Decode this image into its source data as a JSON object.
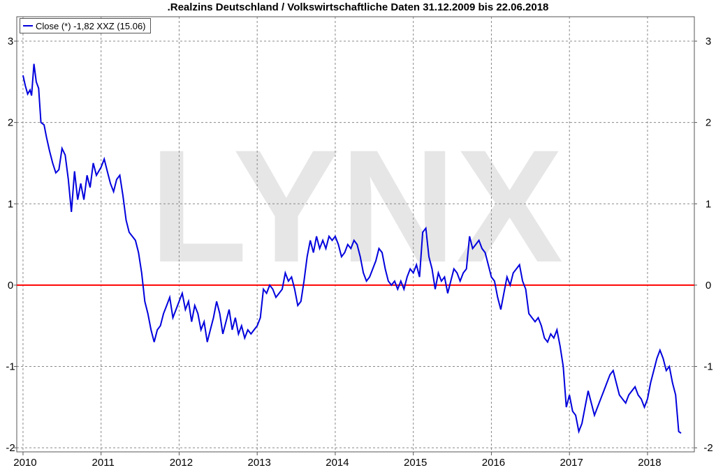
{
  "chart_data": {
    "type": "line",
    "title": ".Realzins Deutschland / Volkswirtschaftliche Daten 31.12.2009 bis 22.06.2018",
    "xlabel": "",
    "ylabel": "",
    "xlim": [
      2009.92,
      2018.6
    ],
    "ylim": [
      -2.05,
      3.3
    ],
    "xticks": [
      2010,
      2011,
      2012,
      2013,
      2014,
      2015,
      2016,
      2017,
      2018
    ],
    "xtick_labels": [
      "2010",
      "2011",
      "2012",
      "2013",
      "2014",
      "2015",
      "2016",
      "2017",
      "2018"
    ],
    "yticks": [
      -2,
      -1,
      0,
      1,
      2,
      3
    ],
    "ytick_labels": [
      "-2",
      "-1",
      "0",
      "1",
      "2",
      "3"
    ],
    "grid": true,
    "legend": {
      "position": "top-left",
      "label": "Close (*) -1,82 XXZ (15.06)"
    },
    "watermark": "LYNX",
    "reference_line": {
      "y": 0,
      "color": "#ff0000"
    },
    "series": [
      {
        "color": "#0000dd",
        "points": [
          [
            2010.0,
            2.58
          ],
          [
            2010.03,
            2.45
          ],
          [
            2010.06,
            2.35
          ],
          [
            2010.09,
            2.4
          ],
          [
            2010.11,
            2.33
          ],
          [
            2010.14,
            2.72
          ],
          [
            2010.17,
            2.5
          ],
          [
            2010.2,
            2.42
          ],
          [
            2010.23,
            2.0
          ],
          [
            2010.27,
            1.97
          ],
          [
            2010.3,
            1.82
          ],
          [
            2010.34,
            1.65
          ],
          [
            2010.38,
            1.5
          ],
          [
            2010.42,
            1.38
          ],
          [
            2010.46,
            1.42
          ],
          [
            2010.5,
            1.68
          ],
          [
            2010.54,
            1.6
          ],
          [
            2010.58,
            1.3
          ],
          [
            2010.62,
            0.9
          ],
          [
            2010.66,
            1.4
          ],
          [
            2010.7,
            1.05
          ],
          [
            2010.74,
            1.25
          ],
          [
            2010.78,
            1.05
          ],
          [
            2010.82,
            1.35
          ],
          [
            2010.86,
            1.2
          ],
          [
            2010.9,
            1.5
          ],
          [
            2010.94,
            1.35
          ],
          [
            2011.0,
            1.45
          ],
          [
            2011.04,
            1.55
          ],
          [
            2011.08,
            1.4
          ],
          [
            2011.12,
            1.25
          ],
          [
            2011.16,
            1.15
          ],
          [
            2011.2,
            1.3
          ],
          [
            2011.24,
            1.35
          ],
          [
            2011.28,
            1.1
          ],
          [
            2011.32,
            0.8
          ],
          [
            2011.36,
            0.65
          ],
          [
            2011.4,
            0.6
          ],
          [
            2011.44,
            0.55
          ],
          [
            2011.48,
            0.4
          ],
          [
            2011.52,
            0.15
          ],
          [
            2011.56,
            -0.2
          ],
          [
            2011.6,
            -0.35
          ],
          [
            2011.64,
            -0.55
          ],
          [
            2011.68,
            -0.7
          ],
          [
            2011.72,
            -0.55
          ],
          [
            2011.76,
            -0.5
          ],
          [
            2011.8,
            -0.35
          ],
          [
            2011.84,
            -0.25
          ],
          [
            2011.88,
            -0.15
          ],
          [
            2011.92,
            -0.4
          ],
          [
            2011.96,
            -0.3
          ],
          [
            2012.0,
            -0.2
          ],
          [
            2012.04,
            -0.1
          ],
          [
            2012.08,
            -0.3
          ],
          [
            2012.12,
            -0.2
          ],
          [
            2012.16,
            -0.45
          ],
          [
            2012.2,
            -0.25
          ],
          [
            2012.24,
            -0.35
          ],
          [
            2012.28,
            -0.55
          ],
          [
            2012.32,
            -0.45
          ],
          [
            2012.36,
            -0.7
          ],
          [
            2012.4,
            -0.55
          ],
          [
            2012.44,
            -0.4
          ],
          [
            2012.48,
            -0.2
          ],
          [
            2012.52,
            -0.35
          ],
          [
            2012.56,
            -0.6
          ],
          [
            2012.6,
            -0.45
          ],
          [
            2012.64,
            -0.3
          ],
          [
            2012.68,
            -0.55
          ],
          [
            2012.72,
            -0.4
          ],
          [
            2012.76,
            -0.6
          ],
          [
            2012.8,
            -0.5
          ],
          [
            2012.84,
            -0.65
          ],
          [
            2012.88,
            -0.55
          ],
          [
            2012.92,
            -0.6
          ],
          [
            2012.96,
            -0.55
          ],
          [
            2013.0,
            -0.5
          ],
          [
            2013.04,
            -0.4
          ],
          [
            2013.08,
            -0.05
          ],
          [
            2013.12,
            -0.1
          ],
          [
            2013.16,
            0.0
          ],
          [
            2013.2,
            -0.05
          ],
          [
            2013.24,
            -0.15
          ],
          [
            2013.28,
            -0.1
          ],
          [
            2013.32,
            -0.05
          ],
          [
            2013.36,
            0.15
          ],
          [
            2013.4,
            0.05
          ],
          [
            2013.44,
            0.1
          ],
          [
            2013.48,
            -0.05
          ],
          [
            2013.52,
            -0.25
          ],
          [
            2013.56,
            -0.2
          ],
          [
            2013.6,
            0.05
          ],
          [
            2013.64,
            0.35
          ],
          [
            2013.68,
            0.55
          ],
          [
            2013.72,
            0.4
          ],
          [
            2013.76,
            0.6
          ],
          [
            2013.8,
            0.45
          ],
          [
            2013.84,
            0.55
          ],
          [
            2013.88,
            0.45
          ],
          [
            2013.92,
            0.6
          ],
          [
            2013.96,
            0.55
          ],
          [
            2014.0,
            0.6
          ],
          [
            2014.04,
            0.5
          ],
          [
            2014.08,
            0.35
          ],
          [
            2014.12,
            0.4
          ],
          [
            2014.16,
            0.5
          ],
          [
            2014.2,
            0.45
          ],
          [
            2014.24,
            0.55
          ],
          [
            2014.28,
            0.5
          ],
          [
            2014.32,
            0.35
          ],
          [
            2014.36,
            0.15
          ],
          [
            2014.4,
            0.05
          ],
          [
            2014.44,
            0.1
          ],
          [
            2014.48,
            0.2
          ],
          [
            2014.52,
            0.3
          ],
          [
            2014.56,
            0.45
          ],
          [
            2014.6,
            0.4
          ],
          [
            2014.64,
            0.2
          ],
          [
            2014.68,
            0.05
          ],
          [
            2014.72,
            0.0
          ],
          [
            2014.76,
            0.05
          ],
          [
            2014.8,
            -0.05
          ],
          [
            2014.84,
            0.05
          ],
          [
            2014.88,
            -0.05
          ],
          [
            2014.92,
            0.1
          ],
          [
            2014.96,
            0.2
          ],
          [
            2015.0,
            0.15
          ],
          [
            2015.04,
            0.25
          ],
          [
            2015.08,
            0.1
          ],
          [
            2015.12,
            0.65
          ],
          [
            2015.16,
            0.7
          ],
          [
            2015.2,
            0.35
          ],
          [
            2015.24,
            0.2
          ],
          [
            2015.28,
            -0.05
          ],
          [
            2015.32,
            0.15
          ],
          [
            2015.36,
            0.05
          ],
          [
            2015.4,
            0.1
          ],
          [
            2015.44,
            -0.1
          ],
          [
            2015.48,
            0.05
          ],
          [
            2015.52,
            0.2
          ],
          [
            2015.56,
            0.15
          ],
          [
            2015.6,
            0.05
          ],
          [
            2015.64,
            0.15
          ],
          [
            2015.68,
            0.2
          ],
          [
            2015.72,
            0.6
          ],
          [
            2015.76,
            0.45
          ],
          [
            2015.8,
            0.5
          ],
          [
            2015.84,
            0.55
          ],
          [
            2015.88,
            0.45
          ],
          [
            2015.92,
            0.4
          ],
          [
            2015.96,
            0.25
          ],
          [
            2016.0,
            0.1
          ],
          [
            2016.04,
            0.05
          ],
          [
            2016.08,
            -0.15
          ],
          [
            2016.12,
            -0.3
          ],
          [
            2016.16,
            -0.1
          ],
          [
            2016.2,
            0.1
          ],
          [
            2016.24,
            0.0
          ],
          [
            2016.28,
            0.15
          ],
          [
            2016.32,
            0.2
          ],
          [
            2016.36,
            0.25
          ],
          [
            2016.4,
            0.05
          ],
          [
            2016.44,
            -0.05
          ],
          [
            2016.48,
            -0.35
          ],
          [
            2016.52,
            -0.4
          ],
          [
            2016.56,
            -0.45
          ],
          [
            2016.6,
            -0.4
          ],
          [
            2016.64,
            -0.5
          ],
          [
            2016.68,
            -0.65
          ],
          [
            2016.72,
            -0.7
          ],
          [
            2016.76,
            -0.6
          ],
          [
            2016.8,
            -0.65
          ],
          [
            2016.84,
            -0.55
          ],
          [
            2016.88,
            -0.75
          ],
          [
            2016.92,
            -1.0
          ],
          [
            2016.96,
            -1.5
          ],
          [
            2017.0,
            -1.35
          ],
          [
            2017.04,
            -1.55
          ],
          [
            2017.08,
            -1.6
          ],
          [
            2017.12,
            -1.8
          ],
          [
            2017.16,
            -1.7
          ],
          [
            2017.2,
            -1.5
          ],
          [
            2017.24,
            -1.3
          ],
          [
            2017.28,
            -1.45
          ],
          [
            2017.32,
            -1.6
          ],
          [
            2017.36,
            -1.5
          ],
          [
            2017.4,
            -1.4
          ],
          [
            2017.44,
            -1.3
          ],
          [
            2017.48,
            -1.2
          ],
          [
            2017.52,
            -1.1
          ],
          [
            2017.56,
            -1.05
          ],
          [
            2017.6,
            -1.2
          ],
          [
            2017.64,
            -1.35
          ],
          [
            2017.68,
            -1.4
          ],
          [
            2017.72,
            -1.45
          ],
          [
            2017.76,
            -1.35
          ],
          [
            2017.8,
            -1.3
          ],
          [
            2017.84,
            -1.25
          ],
          [
            2017.88,
            -1.35
          ],
          [
            2017.92,
            -1.4
          ],
          [
            2017.96,
            -1.5
          ],
          [
            2018.0,
            -1.4
          ],
          [
            2018.04,
            -1.2
          ],
          [
            2018.08,
            -1.05
          ],
          [
            2018.12,
            -0.9
          ],
          [
            2018.16,
            -0.8
          ],
          [
            2018.2,
            -0.9
          ],
          [
            2018.24,
            -1.05
          ],
          [
            2018.28,
            -1.0
          ],
          [
            2018.32,
            -1.2
          ],
          [
            2018.36,
            -1.35
          ],
          [
            2018.4,
            -1.8
          ],
          [
            2018.43,
            -1.82
          ]
        ]
      }
    ]
  }
}
